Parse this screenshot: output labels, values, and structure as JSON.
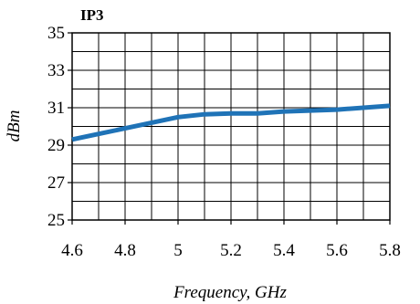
{
  "chart_data": {
    "type": "line",
    "title": "IP3",
    "xlabel": "Frequency, GHz",
    "ylabel": "dBm",
    "xlim": [
      4.6,
      5.8
    ],
    "ylim": [
      25,
      35
    ],
    "x_ticks": [
      4.6,
      4.8,
      5.0,
      5.2,
      5.4,
      5.6,
      5.8
    ],
    "x_tick_labels": [
      "4.6",
      "4.8",
      "5",
      "5.2",
      "5.4",
      "5.6",
      "5.8"
    ],
    "y_ticks": [
      25,
      27,
      29,
      31,
      33,
      35
    ],
    "y_tick_labels": [
      "25",
      "27",
      "29",
      "31",
      "33",
      "35"
    ],
    "x_grid_step": 0.1,
    "y_grid_step": 1,
    "grid": true,
    "series": [
      {
        "color": "#1f73b7",
        "x": [
          4.6,
          4.7,
          4.8,
          4.9,
          5.0,
          5.1,
          5.2,
          5.3,
          5.4,
          5.5,
          5.6,
          5.7,
          5.8
        ],
        "y": [
          29.3,
          29.6,
          29.9,
          30.2,
          30.5,
          30.65,
          30.7,
          30.7,
          30.8,
          30.85,
          30.9,
          31.0,
          31.1
        ]
      }
    ]
  }
}
